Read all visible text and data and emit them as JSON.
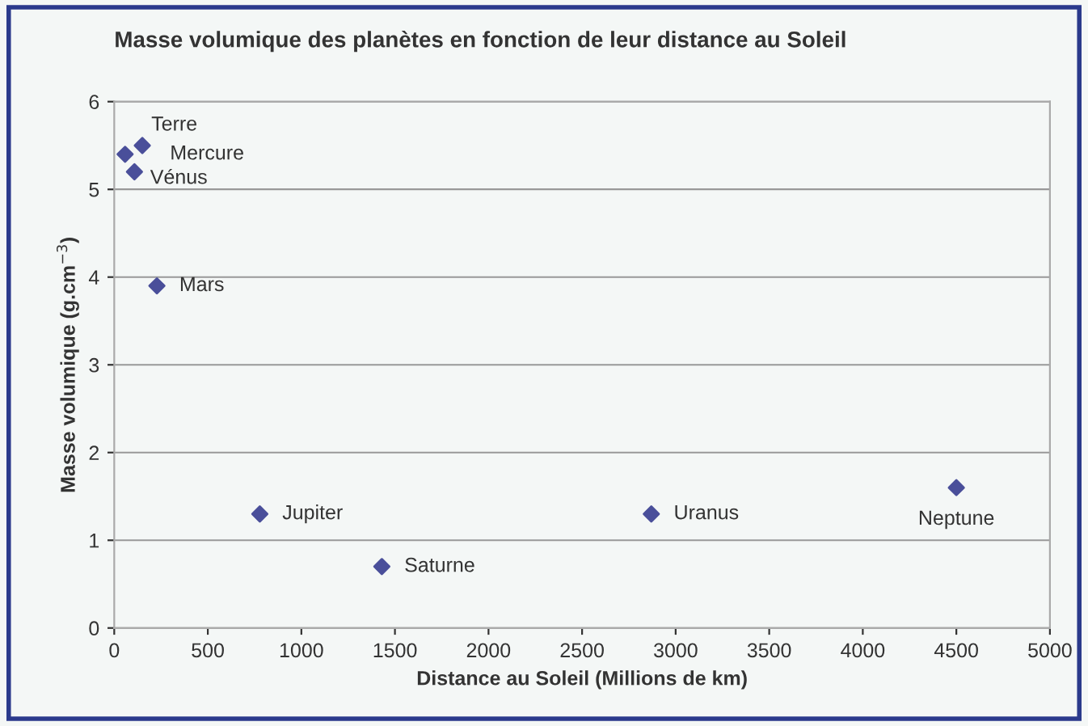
{
  "chart_data": {
    "type": "scatter",
    "title": "Masse volumique des planètes en fonction de leur distance au Soleil",
    "xlabel": "Distance au Soleil (Millions de km)",
    "ylabel": "Masse volumique (g.cm$^{−3}$)",
    "x": [
      58,
      108,
      150,
      228,
      778,
      1430,
      2870,
      4500
    ],
    "series": [
      {
        "color": "#4a4f9a",
        "values": [
          5.4,
          5.2,
          5.5,
          3.9,
          1.3,
          0.7,
          1.3,
          1.6
        ]
      }
    ],
    "annotations": [
      {
        "text": "Mercure",
        "x": 58,
        "y": 5.4
      },
      {
        "text": "Vénus",
        "x": 108,
        "y": 5.2
      },
      {
        "text": "Terre",
        "x": 150,
        "y": 5.5
      },
      {
        "text": "Mars",
        "x": 228,
        "y": 3.9
      },
      {
        "text": "Jupiter",
        "x": 778,
        "y": 1.3
      },
      {
        "text": "Saturne",
        "x": 1430,
        "y": 0.7
      },
      {
        "text": "Uranus",
        "x": 2870,
        "y": 1.3
      },
      {
        "text": "Neptune",
        "x": 4500,
        "y": 1.6
      }
    ],
    "xlim": [
      0,
      5000
    ],
    "xticks": [
      0,
      500,
      1000,
      1500,
      2000,
      2500,
      3000,
      3500,
      4000,
      4500,
      5000
    ],
    "ylim": [
      0,
      6
    ],
    "yticks": [
      0,
      1,
      2,
      3,
      4,
      5,
      6
    ],
    "grid": "y",
    "marker": "diamond",
    "legend": false
  }
}
